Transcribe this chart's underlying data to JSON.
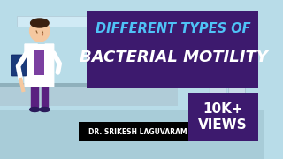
{
  "bg_color": "#b8dce8",
  "title_line1": "DIFFERENT TYPES OF",
  "title_line2": "BACTERIAL MOTILITY",
  "title_box_color": "#3d1a6e",
  "title_line1_color": "#4fc3f7",
  "title_line2_color": "#ffffff",
  "name_text": "DR. SRIKESH LAGUVARAM",
  "name_box_color": "#000000",
  "name_text_color": "#ffffff",
  "views_text_line1": "10K+",
  "views_text_line2": "VIEWS",
  "views_box_color": "#3d1a6e",
  "views_text_color": "#ffffff",
  "floor_color": "#a8ccd8",
  "counter_color": "#b0ccd8",
  "counter_dark": "#8fb0bc",
  "leg_color": "#5a2080",
  "skin_color": "#f5c8a0",
  "hair_color": "#3a2010",
  "clipboard_color": "#1a3a7a",
  "shoe_color": "#2a1a5a",
  "shirt_color": "#7b3fa0"
}
